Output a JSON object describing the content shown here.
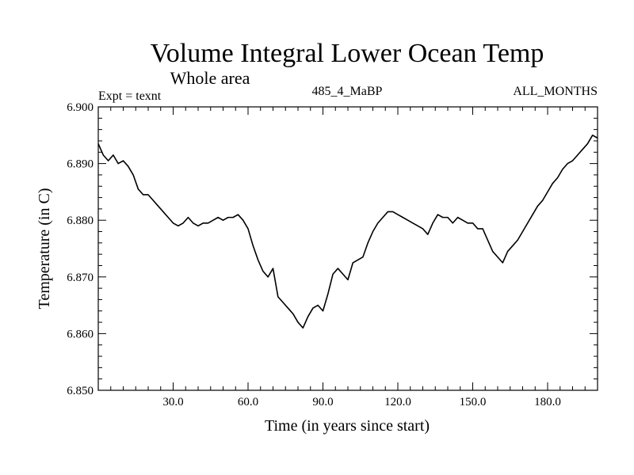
{
  "chart_data": {
    "type": "line",
    "title": "Volume Integral Lower Ocean Temp",
    "subtitle": "Whole area",
    "annotations": {
      "left": "Expt = texnt",
      "center": "485_4_MaBP",
      "right": "ALL_MONTHS"
    },
    "xlabel": "Time (in years since start)",
    "ylabel": "Temperature (in C)",
    "xlim": [
      0,
      200
    ],
    "ylim": [
      6.85,
      6.9
    ],
    "xticks": [
      30,
      60,
      90,
      120,
      150,
      180
    ],
    "xtick_labels": [
      "30.0",
      "60.0",
      "90.0",
      "120.0",
      "150.0",
      "180.0"
    ],
    "yticks": [
      6.85,
      6.86,
      6.87,
      6.88,
      6.89,
      6.9
    ],
    "ytick_labels": [
      "6.850",
      "6.860",
      "6.870",
      "6.880",
      "6.890",
      "6.900"
    ],
    "legend": "none",
    "grid": false,
    "series": [
      {
        "name": "Volume Integral Lower Ocean Temp",
        "x": [
          0,
          2,
          4,
          6,
          8,
          10,
          12,
          14,
          16,
          18,
          20,
          22,
          24,
          26,
          28,
          30,
          32,
          34,
          36,
          38,
          40,
          42,
          44,
          46,
          48,
          50,
          52,
          54,
          56,
          58,
          60,
          62,
          64,
          66,
          68,
          70,
          72,
          74,
          76,
          78,
          80,
          82,
          84,
          86,
          88,
          90,
          92,
          94,
          96,
          98,
          100,
          102,
          104,
          106,
          108,
          110,
          112,
          114,
          116,
          118,
          120,
          122,
          124,
          126,
          128,
          130,
          132,
          134,
          136,
          138,
          140,
          142,
          144,
          146,
          148,
          150,
          152,
          154,
          156,
          158,
          160,
          162,
          164,
          166,
          168,
          170,
          172,
          174,
          176,
          178,
          180,
          182,
          184,
          186,
          188,
          190,
          192,
          194,
          196,
          198,
          200
        ],
        "values": [
          6.8935,
          6.8915,
          6.8905,
          6.8915,
          6.89,
          6.8905,
          6.8895,
          6.888,
          6.8855,
          6.8845,
          6.8845,
          6.8835,
          6.8825,
          6.8815,
          6.8805,
          6.8795,
          6.879,
          6.8795,
          6.8805,
          6.8795,
          6.879,
          6.8795,
          6.8795,
          6.88,
          6.8805,
          6.88,
          6.8805,
          6.8805,
          6.881,
          6.88,
          6.8785,
          6.8755,
          6.873,
          6.871,
          6.87,
          6.8715,
          6.8665,
          6.8655,
          6.8645,
          6.8635,
          6.862,
          6.861,
          6.863,
          6.8645,
          6.865,
          6.864,
          6.867,
          6.8705,
          6.8715,
          6.8705,
          6.8695,
          6.8725,
          6.873,
          6.8735,
          6.876,
          6.878,
          6.8795,
          6.8805,
          6.8815,
          6.8815,
          6.881,
          6.8805,
          6.88,
          6.8795,
          6.879,
          6.8785,
          6.8775,
          6.8795,
          6.881,
          6.8805,
          6.8805,
          6.8795,
          6.8805,
          6.88,
          6.8795,
          6.8795,
          6.8785,
          6.8785,
          6.8765,
          6.8745,
          6.8735,
          6.8725,
          6.8745,
          6.8755,
          6.8765,
          6.878,
          6.8795,
          6.881,
          6.8825,
          6.8835,
          6.885,
          6.8865,
          6.8875,
          6.889,
          6.89,
          6.8905,
          6.8915,
          6.8925,
          6.8935,
          6.895,
          6.8945
        ]
      }
    ]
  }
}
